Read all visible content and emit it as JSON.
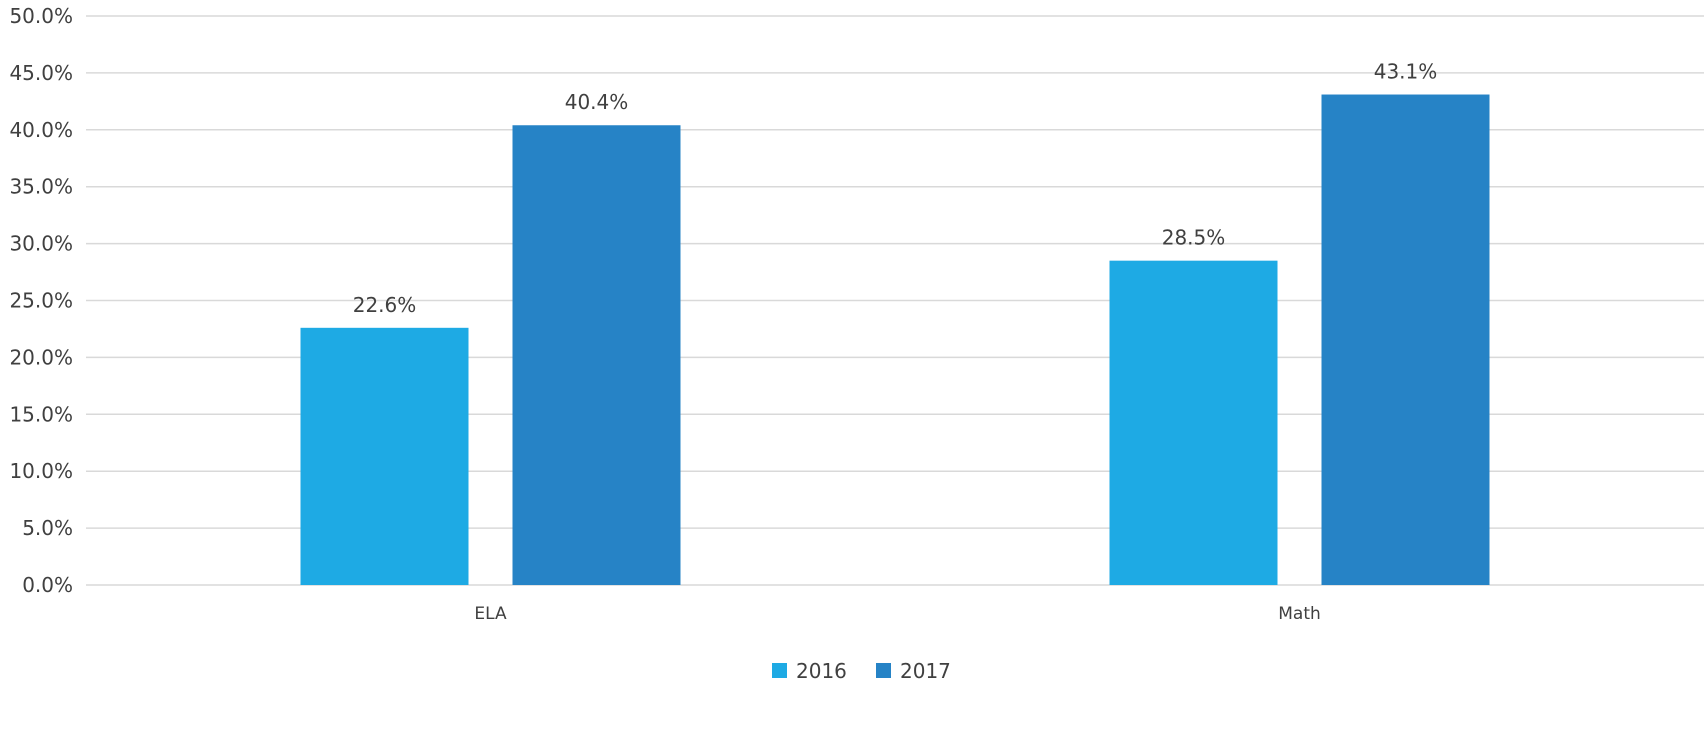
{
  "chart_data": {
    "type": "bar",
    "categories": [
      "ELA",
      "Math"
    ],
    "series": [
      {
        "name": "2016",
        "values": [
          22.6,
          28.5
        ],
        "color": "#1eaae4",
        "labels": [
          "22.6%",
          "28.5%"
        ]
      },
      {
        "name": "2017",
        "values": [
          40.4,
          43.1
        ],
        "color": "#2683c6",
        "labels": [
          "40.4%",
          "43.1%"
        ]
      }
    ],
    "y_ticks": [
      "0.0%",
      "5.0%",
      "10.0%",
      "15.0%",
      "20.0%",
      "25.0%",
      "30.0%",
      "35.0%",
      "40.0%",
      "45.0%",
      "50.0%"
    ],
    "ylim": [
      0,
      50
    ],
    "ytick_step": 5,
    "grid": true,
    "grid_color": "#d9d9d9",
    "legend_position": "bottom-center",
    "title": "",
    "xlabel": "",
    "ylabel": ""
  }
}
